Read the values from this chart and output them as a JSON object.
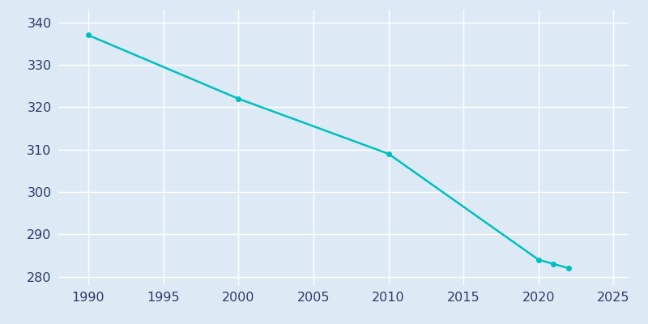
{
  "years": [
    1990,
    2000,
    2010,
    2020,
    2021,
    2022
  ],
  "population": [
    337,
    322,
    309,
    284,
    283,
    282
  ],
  "line_color": "#00BFBF",
  "marker": "o",
  "marker_size": 4,
  "line_width": 1.8,
  "bg_color": "#DDEAF5",
  "grid_color": "#FFFFFF",
  "xlim": [
    1988,
    2026
  ],
  "ylim": [
    278,
    343
  ],
  "xticks": [
    1990,
    1995,
    2000,
    2005,
    2010,
    2015,
    2020,
    2025
  ],
  "yticks": [
    280,
    290,
    300,
    310,
    320,
    330,
    340
  ],
  "tick_color": "#2D3B6B",
  "label_fontsize": 11.5
}
